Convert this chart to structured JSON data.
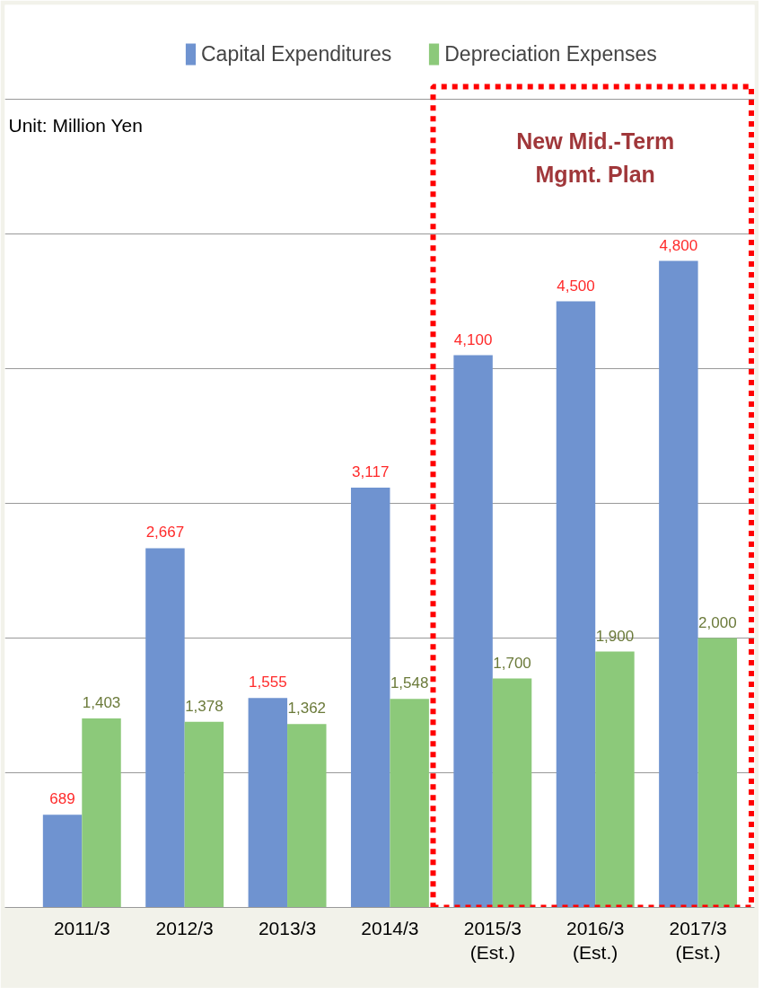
{
  "chart_data": {
    "type": "bar",
    "categories": [
      "2011/3",
      "2012/3",
      "2013/3",
      "2014/3",
      "2015/3\n(Est.)",
      "2016/3\n(Est.)",
      "2017/3\n(Est.)"
    ],
    "series": [
      {
        "name": "Capital Expenditures",
        "color": "#6f93d0",
        "values": [
          689,
          2667,
          1555,
          3117,
          4100,
          4500,
          4800
        ],
        "value_labels": [
          "689",
          "2,667",
          "1,555",
          "3,117",
          "4,100",
          "4,500",
          "4,800"
        ]
      },
      {
        "name": "Depreciation Expenses",
        "color": "#8cc97a",
        "values": [
          1403,
          1378,
          1362,
          1548,
          1700,
          1900,
          2000
        ],
        "value_labels": [
          "1,403",
          "1,378",
          "1,362",
          "1,548",
          "1,700",
          "1,900",
          "2,000"
        ]
      }
    ],
    "ylim": [
      0,
      6700
    ],
    "yticks": [
      {
        "value": 0,
        "label": null
      },
      {
        "value": 1000,
        "label": null
      },
      {
        "value": 2000,
        "label": null
      },
      {
        "value": 3000,
        "label": null
      },
      {
        "value": 4000,
        "label": null
      },
      {
        "value": 5000,
        "label": null
      },
      {
        "value": 6000,
        "label": null
      }
    ],
    "tick_labels": "x",
    "grid": "y",
    "legend": "top",
    "annotations": [
      "Unit: Million Yen",
      "New Mid.-Term\nMgmt. Plan"
    ]
  }
}
